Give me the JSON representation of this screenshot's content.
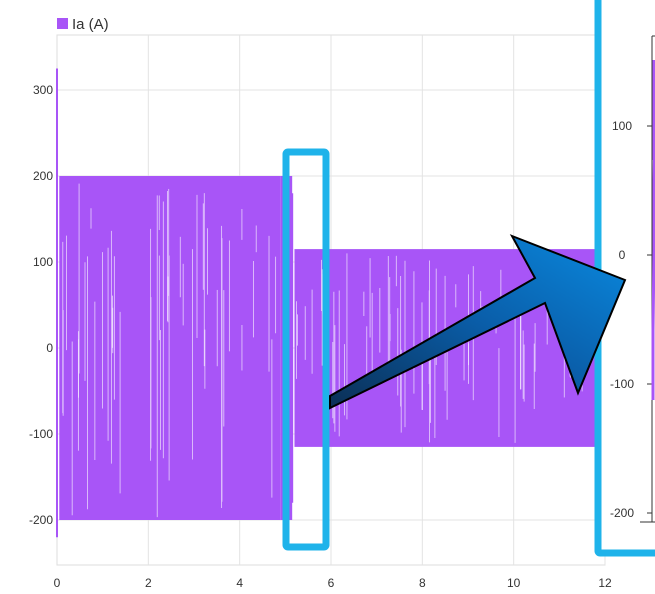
{
  "chart_data": [
    {
      "type": "line",
      "title": "",
      "xlabel": "",
      "ylabel": "",
      "xlim": [
        0,
        12
      ],
      "ylim": [
        -255,
        350
      ],
      "x_ticks": [
        "0",
        "2",
        "4",
        "6",
        "8",
        "10",
        "12"
      ],
      "y_ticks": [
        "300",
        "200",
        "100",
        "0",
        "-100",
        "-200"
      ],
      "grid": true,
      "legend_position": "top-left",
      "series": [
        {
          "name": "Ia (A)",
          "color": "#a855f7",
          "description_points": [
            {
              "x": 0.0,
              "y": 325
            },
            {
              "x": 0.05,
              "y": -220
            },
            {
              "x": 0.1,
              "y": 200
            },
            {
              "x": 4.9,
              "y": 200
            },
            {
              "x": 4.9,
              "y": -200
            },
            {
              "x": 5.1,
              "y": 180
            },
            {
              "x": 5.1,
              "y": -180
            },
            {
              "x": 5.2,
              "y": 115
            },
            {
              "x": 11.9,
              "y": 115
            },
            {
              "x": 5.2,
              "y": -115
            },
            {
              "x": 11.9,
              "y": -115
            }
          ],
          "envelope": [
            {
              "x_start": 0.05,
              "x_end": 4.9,
              "max": 200,
              "min": -200
            },
            {
              "x_start": 4.9,
              "x_end": 5.15,
              "max": 200,
              "min": -200
            },
            {
              "x_start": 5.2,
              "x_end": 11.9,
              "max": 115,
              "min": -115
            }
          ]
        }
      ]
    },
    {
      "type": "line",
      "title": "",
      "xlabel": "",
      "ylabel": "",
      "ylim": [
        -220,
        185
      ],
      "y_ticks": [
        "100",
        "0",
        "-100",
        "-200"
      ],
      "grid": false,
      "description": "zoomed inset of the transition region"
    }
  ],
  "legend": {
    "label": "Ia (A)",
    "color": "#a855f7"
  },
  "annotations": {
    "highlight_color": "#1fb3ea",
    "arrow_color": "#0a72c8"
  }
}
